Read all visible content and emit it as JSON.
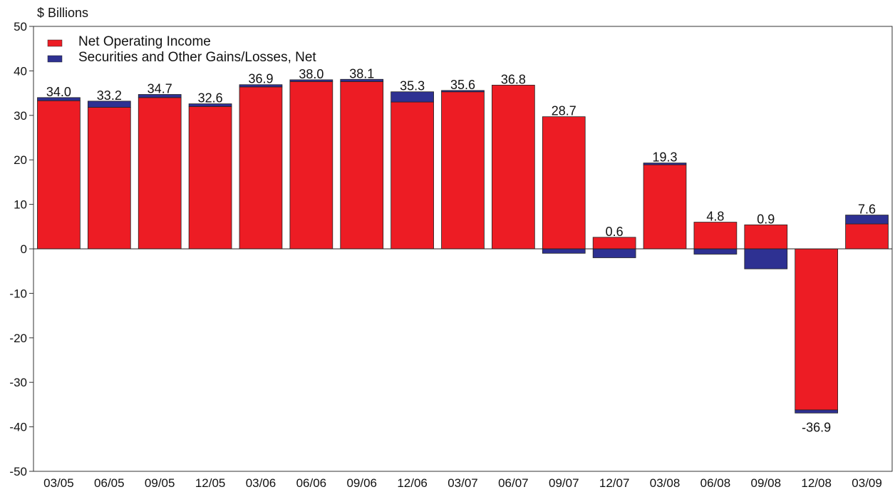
{
  "chart_data": {
    "type": "bar",
    "stacked": true,
    "unit_label": "$ Billions",
    "categories": [
      "03/05",
      "06/05",
      "09/05",
      "12/05",
      "03/06",
      "06/06",
      "09/06",
      "12/06",
      "03/07",
      "06/07",
      "09/07",
      "12/07",
      "03/08",
      "06/08",
      "09/08",
      "12/08",
      "03/09"
    ],
    "series": [
      {
        "name": "Net Operating Income",
        "color": "#ED1C24",
        "values": [
          33.3,
          31.8,
          34.0,
          32.0,
          36.4,
          37.6,
          37.6,
          33.0,
          35.3,
          36.8,
          29.7,
          2.6,
          18.9,
          6.0,
          5.4,
          -36.2,
          5.6
        ]
      },
      {
        "name": "Securities and Other Gains/Losses, Net",
        "color": "#2E3192",
        "values": [
          0.7,
          1.4,
          0.7,
          0.6,
          0.5,
          0.4,
          0.5,
          2.3,
          0.3,
          0.0,
          -1.0,
          -2.0,
          0.4,
          -1.2,
          -4.5,
          -0.7,
          2.0
        ]
      }
    ],
    "totals": [
      34.0,
      33.2,
      34.7,
      32.6,
      36.9,
      38.0,
      38.1,
      35.3,
      35.6,
      36.8,
      28.7,
      0.6,
      19.3,
      4.8,
      0.9,
      -36.9,
      7.6
    ],
    "total_labels": [
      "34.0",
      "33.2",
      "34.7",
      "32.6",
      "36.9",
      "38.0",
      "38.1",
      "35.3",
      "35.6",
      "36.8",
      "28.7",
      "0.6",
      "19.3",
      "4.8",
      "0.9",
      "-36.9",
      "7.6"
    ],
    "ylim": [
      -50,
      50
    ],
    "yticks": [
      50,
      40,
      30,
      20,
      10,
      0,
      -10,
      -20,
      -30,
      -40,
      -50
    ],
    "legend_position": "top-left",
    "grid": false
  }
}
